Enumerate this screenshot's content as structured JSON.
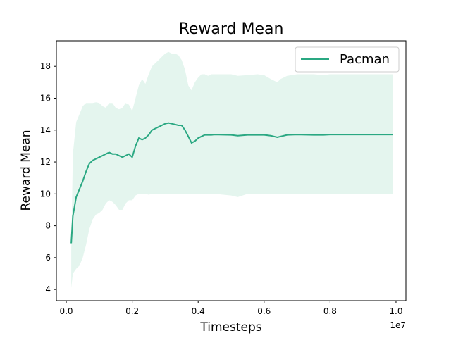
{
  "chart_data": {
    "type": "line",
    "title": "Reward Mean",
    "xlabel": "Timesteps",
    "ylabel": "Reward Mean",
    "x_offset_label": "1e7",
    "xlim": [
      -0.03,
      1.03
    ],
    "ylim": [
      3.3,
      19.6
    ],
    "x_ticks": [
      0.0,
      0.2,
      0.4,
      0.6,
      0.8,
      1.0
    ],
    "x_tick_labels": [
      "0.0",
      "0.2",
      "0.4",
      "0.6",
      "0.8",
      "1.0"
    ],
    "y_ticks": [
      4,
      6,
      8,
      10,
      12,
      14,
      16,
      18
    ],
    "y_tick_labels": [
      "4",
      "6",
      "8",
      "10",
      "12",
      "14",
      "16",
      "18"
    ],
    "grid": false,
    "legend": {
      "position": "top-right"
    },
    "colors": {
      "line": "#2aa882",
      "band": "#e4f5ee"
    },
    "series": [
      {
        "name": "Pacman",
        "x": [
          0.015,
          0.02,
          0.03,
          0.04,
          0.05,
          0.06,
          0.07,
          0.08,
          0.09,
          0.1,
          0.11,
          0.12,
          0.13,
          0.14,
          0.15,
          0.16,
          0.17,
          0.18,
          0.19,
          0.2,
          0.21,
          0.22,
          0.23,
          0.24,
          0.25,
          0.26,
          0.27,
          0.28,
          0.29,
          0.3,
          0.31,
          0.32,
          0.33,
          0.34,
          0.35,
          0.36,
          0.37,
          0.38,
          0.39,
          0.4,
          0.41,
          0.42,
          0.43,
          0.44,
          0.45,
          0.5,
          0.52,
          0.55,
          0.58,
          0.6,
          0.62,
          0.64,
          0.65,
          0.67,
          0.7,
          0.75,
          0.78,
          0.8,
          0.85,
          0.9,
          0.95,
          0.99
        ],
        "y": [
          6.9,
          8.6,
          9.8,
          10.3,
          10.8,
          11.4,
          11.9,
          12.1,
          12.2,
          12.3,
          12.4,
          12.5,
          12.6,
          12.5,
          12.5,
          12.4,
          12.3,
          12.4,
          12.5,
          12.3,
          13.0,
          13.5,
          13.4,
          13.5,
          13.7,
          14.0,
          14.1,
          14.2,
          14.3,
          14.4,
          14.45,
          14.4,
          14.35,
          14.3,
          14.3,
          14.0,
          13.6,
          13.2,
          13.3,
          13.5,
          13.6,
          13.7,
          13.7,
          13.7,
          13.72,
          13.7,
          13.65,
          13.7,
          13.7,
          13.7,
          13.65,
          13.55,
          13.6,
          13.7,
          13.72,
          13.7,
          13.7,
          13.72,
          13.72,
          13.72,
          13.72,
          13.72
        ],
        "upper": [
          6.5,
          12.5,
          14.5,
          15.0,
          15.5,
          15.7,
          15.7,
          15.7,
          15.75,
          15.7,
          15.5,
          15.4,
          15.7,
          15.7,
          15.4,
          15.3,
          15.4,
          15.7,
          15.6,
          15.2,
          16.0,
          16.8,
          17.2,
          16.9,
          17.5,
          18.0,
          18.2,
          18.4,
          18.6,
          18.8,
          18.9,
          18.8,
          18.8,
          18.7,
          18.4,
          17.8,
          16.8,
          16.5,
          17.0,
          17.3,
          17.5,
          17.5,
          17.4,
          17.5,
          17.5,
          17.5,
          17.4,
          17.45,
          17.5,
          17.45,
          17.2,
          17.0,
          17.2,
          17.4,
          17.5,
          17.5,
          17.45,
          17.5,
          17.5,
          17.5,
          17.5,
          17.5
        ],
        "lower": [
          4.1,
          5.0,
          5.3,
          5.5,
          6.0,
          6.8,
          7.8,
          8.4,
          8.7,
          8.8,
          9.0,
          9.4,
          9.6,
          9.5,
          9.3,
          9.0,
          9.0,
          9.4,
          9.6,
          9.6,
          9.9,
          10.0,
          10.0,
          10.0,
          9.95,
          10.0,
          10.0,
          10.0,
          10.0,
          10.0,
          10.0,
          10.0,
          10.0,
          10.0,
          10.0,
          10.0,
          10.0,
          10.0,
          10.0,
          10.0,
          10.0,
          10.0,
          10.0,
          10.0,
          10.0,
          9.9,
          9.8,
          10.0,
          10.0,
          10.0,
          10.0,
          10.0,
          10.0,
          10.0,
          10.0,
          10.0,
          10.0,
          10.0,
          10.0,
          10.0,
          10.0,
          10.0
        ]
      }
    ]
  }
}
